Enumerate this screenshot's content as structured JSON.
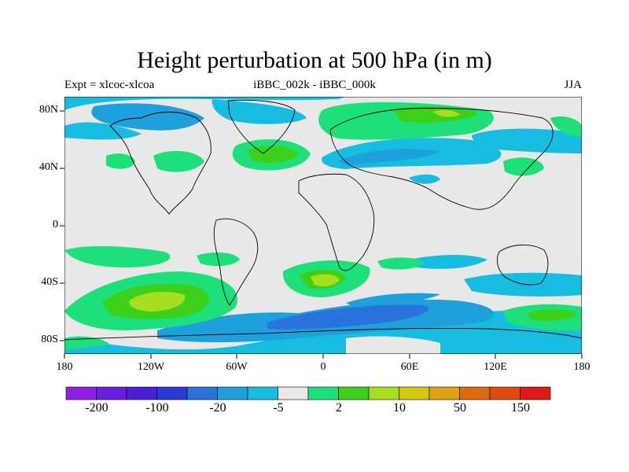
{
  "title": "Height perturbation at 500 hPa (in m)",
  "subtitle_left": "Expt = xlcoc-xlcoa",
  "subtitle_center": "iBBC_002k - iBBC_000k",
  "subtitle_right": "JJA",
  "lat_ticks": [
    "80N",
    "40N",
    "0",
    "40S",
    "80S"
  ],
  "lon_ticks": [
    "180",
    "120W",
    "60W",
    "0",
    "60E",
    "120E",
    "180"
  ],
  "colorbar": {
    "colors": [
      "#8f1fe6",
      "#6a1fe0",
      "#4a1fd8",
      "#2a3ad8",
      "#2a72dc",
      "#1ea0dc",
      "#17bde0",
      "#e8e8e8",
      "#1ee07a",
      "#3dd01a",
      "#a8de20",
      "#d4c814",
      "#e0a214",
      "#dc6a10",
      "#e04a16",
      "#e01818"
    ],
    "labels": [
      "-200",
      "-100",
      "-20",
      "-5",
      "2",
      "10",
      "50",
      "150"
    ]
  },
  "colors": {
    "background": "#e8e8e8",
    "neg_weak": "#17bde0",
    "neg_mid": "#1ea0dc",
    "neg_strong": "#2a72dc",
    "pos_weak": "#1ee07a",
    "pos_mid": "#3dd01a",
    "pos_strong": "#a8de20"
  }
}
